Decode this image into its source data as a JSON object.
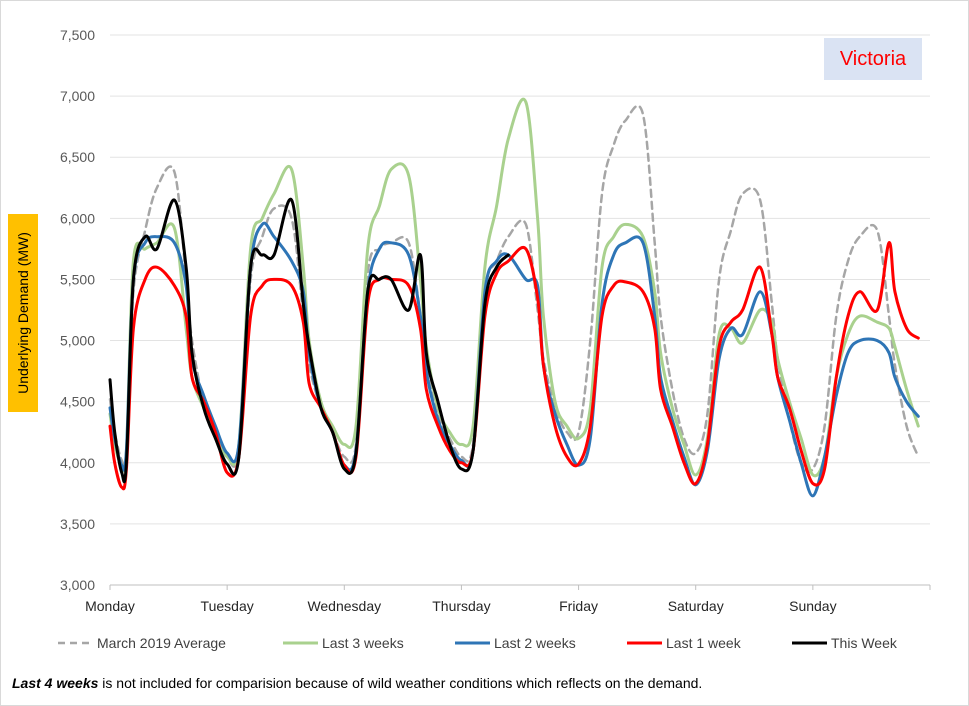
{
  "chart_data": {
    "type": "line",
    "title": "",
    "region_label": "Victoria",
    "ylabel": "Underlying Demand (MW)",
    "xlabel": "",
    "ylim": [
      3000,
      7500
    ],
    "yticks": [
      3000,
      3500,
      4000,
      4500,
      5000,
      5500,
      6000,
      6500,
      7000,
      7500
    ],
    "ytick_labels": [
      "3,000",
      "3,500",
      "4,000",
      "4,500",
      "5,000",
      "5,500",
      "6,000",
      "6,500",
      "7,000",
      "7,500"
    ],
    "x_unit": "days since Monday 00:00",
    "xlim": [
      0,
      7
    ],
    "day_labels": [
      "Monday",
      "Tuesday",
      "Wednesday",
      "Thursday",
      "Friday",
      "Saturday",
      "Sunday"
    ],
    "grid": true,
    "legend_position": "bottom",
    "series": [
      {
        "name": "March 2019 Average",
        "color": "#a6a6a6",
        "dashed": true,
        "x": [
          0,
          0.04,
          0.1,
          0.14,
          0.2,
          0.3,
          0.4,
          0.55,
          0.65,
          0.7,
          0.8,
          0.9,
          1,
          1.1,
          1.2,
          1.3,
          1.4,
          1.55,
          1.65,
          1.7,
          1.8,
          1.9,
          2,
          2.1,
          2.2,
          2.3,
          2.4,
          2.55,
          2.65,
          2.7,
          2.8,
          2.9,
          3,
          3.1,
          3.2,
          3.3,
          3.4,
          3.55,
          3.65,
          3.7,
          3.8,
          3.9,
          4,
          4.1,
          4.2,
          4.3,
          4.4,
          4.55,
          4.65,
          4.7,
          4.8,
          4.9,
          5,
          5.1,
          5.2,
          5.3,
          5.4,
          5.55,
          5.65,
          5.7,
          5.8,
          5.9,
          6,
          6.1,
          6.2,
          6.3,
          6.4,
          6.55,
          6.65,
          6.7,
          6.8,
          6.9
        ],
        "y": [
          4520,
          4250,
          4020,
          4100,
          5400,
          5900,
          6250,
          6380,
          5500,
          5000,
          4500,
          4300,
          4050,
          4100,
          5500,
          5850,
          6080,
          6000,
          5200,
          4800,
          4450,
          4250,
          4050,
          4150,
          5550,
          5750,
          5800,
          5800,
          5200,
          4800,
          4400,
          4200,
          4050,
          4150,
          5400,
          5650,
          5850,
          5950,
          5250,
          4850,
          4450,
          4250,
          4250,
          5000,
          6200,
          6600,
          6800,
          6850,
          5800,
          5200,
          4600,
          4200,
          4080,
          4400,
          5500,
          5900,
          6200,
          6150,
          5300,
          4850,
          4350,
          4000,
          3950,
          4300,
          5200,
          5650,
          5850,
          5900,
          5200,
          4800,
          4300,
          4050
        ]
      },
      {
        "name": "Last 3 weeks",
        "color": "#a9d18e",
        "dashed": false,
        "x": [
          0,
          0.04,
          0.1,
          0.14,
          0.2,
          0.3,
          0.4,
          0.55,
          0.65,
          0.7,
          0.8,
          0.9,
          1,
          1.1,
          1.2,
          1.3,
          1.4,
          1.55,
          1.65,
          1.7,
          1.8,
          1.9,
          2,
          2.1,
          2.2,
          2.3,
          2.4,
          2.55,
          2.65,
          2.7,
          2.8,
          2.9,
          3,
          3.1,
          3.2,
          3.3,
          3.4,
          3.55,
          3.65,
          3.7,
          3.8,
          3.9,
          4,
          4.1,
          4.2,
          4.3,
          4.4,
          4.55,
          4.65,
          4.7,
          4.8,
          4.9,
          5,
          5.1,
          5.2,
          5.3,
          5.4,
          5.55,
          5.65,
          5.7,
          5.8,
          5.9,
          6,
          6.1,
          6.2,
          6.3,
          6.4,
          6.55,
          6.65,
          6.7,
          6.8,
          6.9
        ],
        "y": [
          4400,
          4150,
          3980,
          4100,
          5650,
          5750,
          5800,
          5920,
          5100,
          4700,
          4450,
          4250,
          4050,
          4150,
          5750,
          6000,
          6200,
          6400,
          5600,
          5000,
          4500,
          4300,
          4150,
          4300,
          5750,
          6100,
          6400,
          6350,
          5500,
          4950,
          4450,
          4250,
          4150,
          4300,
          5600,
          6100,
          6650,
          6950,
          6000,
          5200,
          4500,
          4300,
          4200,
          4450,
          5600,
          5850,
          5950,
          5850,
          5400,
          4900,
          4450,
          4150,
          3900,
          4200,
          5050,
          5100,
          4980,
          5250,
          5150,
          4850,
          4500,
          4200,
          3900,
          4050,
          4700,
          5050,
          5200,
          5150,
          5100,
          4950,
          4600,
          4300
        ]
      },
      {
        "name": "Last 2 weeks",
        "color": "#2e75b6",
        "dashed": false,
        "x": [
          0,
          0.04,
          0.1,
          0.14,
          0.2,
          0.3,
          0.4,
          0.55,
          0.65,
          0.7,
          0.8,
          0.9,
          1,
          1.1,
          1.2,
          1.3,
          1.4,
          1.55,
          1.65,
          1.7,
          1.8,
          1.9,
          2,
          2.1,
          2.2,
          2.3,
          2.4,
          2.55,
          2.65,
          2.7,
          2.8,
          2.9,
          3,
          3.1,
          3.2,
          3.3,
          3.4,
          3.55,
          3.65,
          3.7,
          3.8,
          3.9,
          4,
          4.1,
          4.2,
          4.3,
          4.4,
          4.55,
          4.65,
          4.7,
          4.8,
          4.9,
          5,
          5.1,
          5.2,
          5.3,
          5.4,
          5.55,
          5.65,
          5.7,
          5.8,
          5.9,
          6,
          6.1,
          6.2,
          6.3,
          6.4,
          6.55,
          6.65,
          6.7,
          6.8,
          6.9
        ],
        "y": [
          4450,
          4200,
          3980,
          4100,
          5500,
          5800,
          5850,
          5800,
          5450,
          4850,
          4550,
          4300,
          4080,
          4150,
          5600,
          5950,
          5850,
          5650,
          5400,
          4900,
          4450,
          4250,
          3980,
          4100,
          5400,
          5750,
          5800,
          5700,
          5200,
          4750,
          4350,
          4150,
          4020,
          4100,
          5400,
          5650,
          5700,
          5500,
          5450,
          4800,
          4400,
          4150,
          3980,
          4200,
          5300,
          5700,
          5800,
          5800,
          5200,
          4700,
          4350,
          4050,
          3820,
          4100,
          4850,
          5100,
          5050,
          5400,
          5050,
          4700,
          4350,
          4000,
          3730,
          4050,
          4550,
          4900,
          5000,
          5000,
          4900,
          4700,
          4500,
          4380
        ]
      },
      {
        "name": "Last 1 week",
        "color": "#ff0000",
        "dashed": false,
        "x": [
          0,
          0.04,
          0.1,
          0.14,
          0.2,
          0.3,
          0.4,
          0.55,
          0.65,
          0.7,
          0.8,
          0.9,
          1,
          1.1,
          1.2,
          1.3,
          1.4,
          1.55,
          1.65,
          1.7,
          1.8,
          1.9,
          2,
          2.1,
          2.2,
          2.3,
          2.4,
          2.55,
          2.65,
          2.7,
          2.8,
          2.9,
          3,
          3.1,
          3.2,
          3.3,
          3.4,
          3.55,
          3.65,
          3.7,
          3.8,
          3.9,
          4,
          4.1,
          4.2,
          4.3,
          4.4,
          4.55,
          4.65,
          4.7,
          4.8,
          4.9,
          5,
          5.1,
          5.2,
          5.3,
          5.4,
          5.55,
          5.65,
          5.7,
          5.8,
          5.9,
          6,
          6.1,
          6.2,
          6.3,
          6.4,
          6.55,
          6.65,
          6.7,
          6.8,
          6.9
        ],
        "y": [
          4300,
          4000,
          3800,
          3950,
          5100,
          5500,
          5600,
          5450,
          5200,
          4700,
          4500,
          4250,
          3920,
          4050,
          5200,
          5450,
          5500,
          5450,
          5150,
          4650,
          4450,
          4250,
          3980,
          4050,
          5300,
          5500,
          5500,
          5450,
          5100,
          4600,
          4300,
          4100,
          4000,
          4100,
          5200,
          5550,
          5650,
          5750,
          5350,
          4800,
          4300,
          4050,
          3990,
          4300,
          5200,
          5450,
          5480,
          5400,
          5100,
          4600,
          4300,
          4000,
          3830,
          4150,
          4950,
          5150,
          5250,
          5600,
          5050,
          4700,
          4450,
          4100,
          3830,
          3950,
          4700,
          5200,
          5400,
          5250,
          5800,
          5400,
          5100,
          5020
        ]
      },
      {
        "name": "This Week",
        "color": "#000000",
        "dashed": false,
        "x": [
          0,
          0.04,
          0.1,
          0.14,
          0.2,
          0.3,
          0.4,
          0.55,
          0.65,
          0.7,
          0.8,
          0.9,
          1,
          1.1,
          1.2,
          1.3,
          1.4,
          1.55,
          1.65,
          1.7,
          1.8,
          1.9,
          2,
          2.1,
          2.2,
          2.3,
          2.4,
          2.55,
          2.65,
          2.7,
          2.8,
          2.9,
          3,
          3.1,
          3.2,
          3.3,
          3.4
        ],
        "y": [
          4680,
          4250,
          3920,
          4000,
          5500,
          5850,
          5750,
          6150,
          5600,
          4900,
          4450,
          4200,
          3990,
          4050,
          5600,
          5700,
          5700,
          6150,
          5300,
          4950,
          4450,
          4250,
          3950,
          4080,
          5400,
          5500,
          5500,
          5250,
          5700,
          4900,
          4500,
          4150,
          3950,
          4100,
          5300,
          5600,
          5700
        ]
      }
    ]
  },
  "footnote": {
    "emphasis": "Last 4 weeks",
    "text": " is not included for comparision because of wild weather conditions which reflects on the demand."
  }
}
